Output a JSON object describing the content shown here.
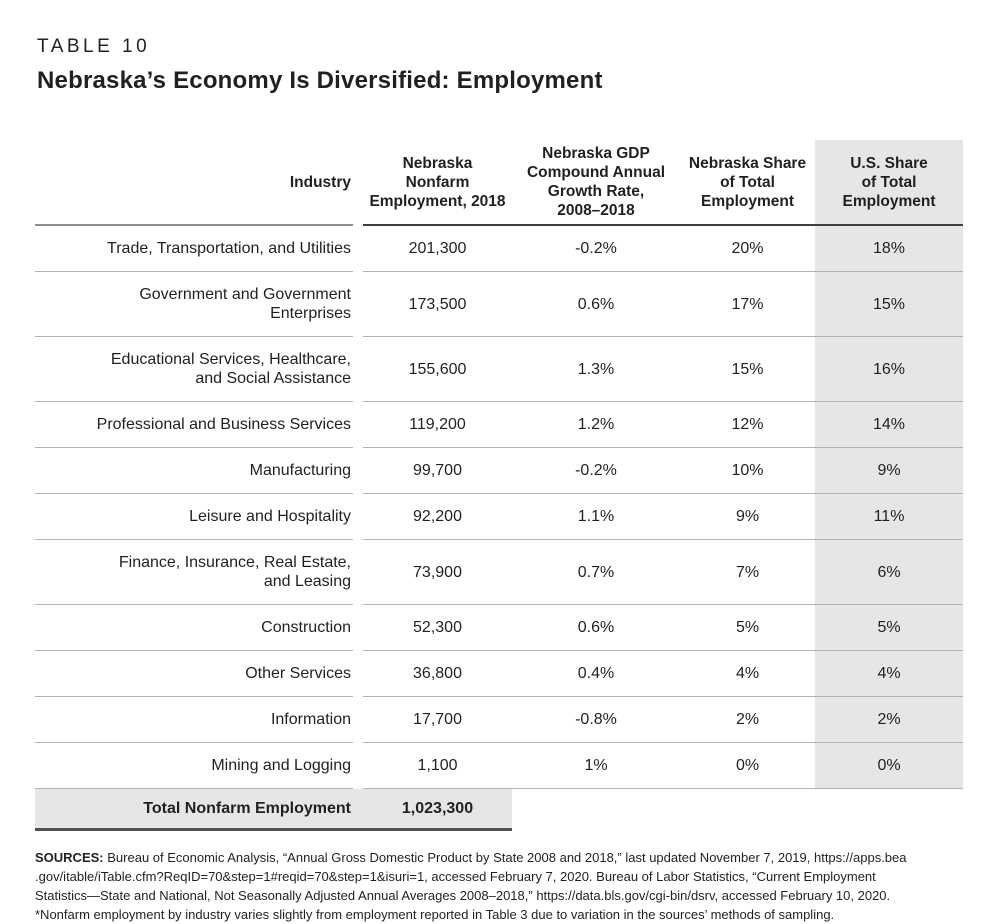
{
  "page": {
    "kicker": "TABLE 10",
    "title": "Nebraska’s Economy Is Diversified: Employment"
  },
  "table": {
    "headers": [
      {
        "label": "Industry",
        "lines": [
          "Industry"
        ]
      },
      {
        "label": "Nebraska Nonfarm Employment, 2018",
        "lines": [
          "Nebraska",
          "Nonfarm",
          "Employment, 2018"
        ]
      },
      {
        "label": "Nebraska GDP Compound Annual Growth Rate, 2008–2018",
        "lines": [
          "Nebraska GDP",
          "Compound Annual",
          "Growth Rate,",
          "2008–2018"
        ]
      },
      {
        "label": "Nebraska Share of Total Employment",
        "lines": [
          "Nebraska Share",
          "of Total",
          "Employment"
        ]
      },
      {
        "label": "U.S. Share of Total Employment",
        "lines": [
          "U.S. Share",
          "of Total",
          "Employment"
        ]
      }
    ],
    "rows": [
      {
        "industry_lines": [
          "Trade, Transportation, and Utilities"
        ],
        "employment_2018": "201,300",
        "gdp_cagr": "-0.2%",
        "ne_share": "20%",
        "us_share": "18%"
      },
      {
        "industry_lines": [
          "Government and Government",
          "Enterprises"
        ],
        "employment_2018": "173,500",
        "gdp_cagr": "0.6%",
        "ne_share": "17%",
        "us_share": "15%"
      },
      {
        "industry_lines": [
          "Educational Services, Healthcare,",
          "and Social Assistance"
        ],
        "employment_2018": "155,600",
        "gdp_cagr": "1.3%",
        "ne_share": "15%",
        "us_share": "16%"
      },
      {
        "industry_lines": [
          "Professional and Business Services"
        ],
        "employment_2018": "119,200",
        "gdp_cagr": "1.2%",
        "ne_share": "12%",
        "us_share": "14%"
      },
      {
        "industry_lines": [
          "Manufacturing"
        ],
        "employment_2018": "99,700",
        "gdp_cagr": "-0.2%",
        "ne_share": "10%",
        "us_share": "9%"
      },
      {
        "industry_lines": [
          "Leisure and Hospitality"
        ],
        "employment_2018": "92,200",
        "gdp_cagr": "1.1%",
        "ne_share": "9%",
        "us_share": "11%"
      },
      {
        "industry_lines": [
          "Finance, Insurance, Real Estate,",
          "and Leasing"
        ],
        "employment_2018": "73,900",
        "gdp_cagr": "0.7%",
        "ne_share": "7%",
        "us_share": "6%"
      },
      {
        "industry_lines": [
          "Construction"
        ],
        "employment_2018": "52,300",
        "gdp_cagr": "0.6%",
        "ne_share": "5%",
        "us_share": "5%"
      },
      {
        "industry_lines": [
          "Other Services"
        ],
        "employment_2018": "36,800",
        "gdp_cagr": "0.4%",
        "ne_share": "4%",
        "us_share": "4%"
      },
      {
        "industry_lines": [
          "Information"
        ],
        "employment_2018": "17,700",
        "gdp_cagr": "-0.8%",
        "ne_share": "2%",
        "us_share": "2%"
      },
      {
        "industry_lines": [
          "Mining and Logging"
        ],
        "employment_2018": "1,100",
        "gdp_cagr": "1%",
        "ne_share": "0%",
        "us_share": "0%"
      }
    ],
    "total": {
      "label": "Total Nonfarm Employment",
      "value": "1,023,300"
    }
  },
  "footer": {
    "sources_label": "SOURCES:",
    "sources_lines": [
      "Bureau of Economic Analysis, “Annual Gross Domestic Product by State 2008 and 2018,” last updated November 7, 2019, https://apps.bea",
      ".gov/itable/iTable.cfm?ReqID=70&step=1#reqid=70&step=1&isuri=1, accessed February 7, 2020. Bureau of Labor Statistics, “Current Employment",
      "Statistics—State and National, Not Seasonally Adjusted Annual Averages 2008–2018,” https://data.bls.gov/cgi-bin/dsrv, accessed February 10, 2020."
    ],
    "footnote": "*Nonfarm employment by industry varies slightly from employment reported in Table 3 due to variation in the sources’ methods of sampling."
  },
  "colors": {
    "highlight_column_bg": "#e6e6e4",
    "total_row_bg": "#e6e6e4",
    "text": "#231f20",
    "rule_light": "#b2b2b2",
    "rule_dark_header": "#3e3e3e",
    "rule_industry_header": "#8e8e8e",
    "total_bottom_rule": "#4f5154"
  },
  "chart_data": {
    "type": "table",
    "title": "Nebraska’s Economy Is Diversified: Employment",
    "columns": [
      "Industry",
      "Nebraska Nonfarm Employment, 2018",
      "Nebraska GDP Compound Annual Growth Rate, 2008–2018",
      "Nebraska Share of Total Employment",
      "U.S. Share of Total Employment"
    ],
    "rows": [
      [
        "Trade, Transportation, and Utilities",
        "201,300",
        "-0.2%",
        "20%",
        "18%"
      ],
      [
        "Government and Government Enterprises",
        "173,500",
        "0.6%",
        "17%",
        "15%"
      ],
      [
        "Educational Services, Healthcare, and Social Assistance",
        "155,600",
        "1.3%",
        "15%",
        "16%"
      ],
      [
        "Professional and Business Services",
        "119,200",
        "1.2%",
        "12%",
        "14%"
      ],
      [
        "Manufacturing",
        "99,700",
        "-0.2%",
        "10%",
        "9%"
      ],
      [
        "Leisure and Hospitality",
        "92,200",
        "1.1%",
        "9%",
        "11%"
      ],
      [
        "Finance, Insurance, Real Estate, and Leasing",
        "73,900",
        "0.7%",
        "7%",
        "6%"
      ],
      [
        "Construction",
        "52,300",
        "0.6%",
        "5%",
        "5%"
      ],
      [
        "Other Services",
        "36,800",
        "0.4%",
        "4%",
        "4%"
      ],
      [
        "Information",
        "17,700",
        "-0.8%",
        "2%",
        "2%"
      ],
      [
        "Mining and Logging",
        "1,100",
        "1%",
        "0%",
        "0%"
      ]
    ],
    "total_row": [
      "Total Nonfarm Employment",
      "1,023,300"
    ]
  }
}
